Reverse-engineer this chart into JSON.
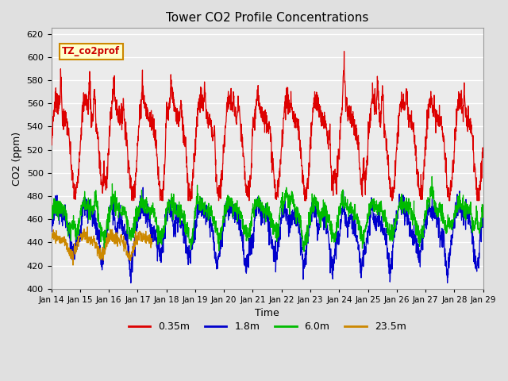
{
  "title": "Tower CO2 Profile Concentrations",
  "xlabel": "Time",
  "ylabel": "CO2 (ppm)",
  "ylim": [
    400,
    625
  ],
  "yticks": [
    400,
    420,
    440,
    460,
    480,
    500,
    520,
    540,
    560,
    580,
    600,
    620
  ],
  "xticklabels": [
    "Jan 14",
    "Jan 15",
    "Jan 16",
    "Jan 17",
    "Jan 18",
    "Jan 19",
    "Jan 20",
    "Jan 21",
    "Jan 22",
    "Jan 23",
    "Jan 24",
    "Jan 25",
    "Jan 26",
    "Jan 27",
    "Jan 28",
    "Jan 29"
  ],
  "colors": {
    "0.35m": "#dd0000",
    "1.8m": "#0000cc",
    "6.0m": "#00bb00",
    "23.5m": "#cc8800"
  },
  "legend_label": "TZ_co2prof",
  "legend_box_facecolor": "#ffffcc",
  "legend_box_edgecolor": "#cc8800",
  "background_color": "#e0e0e0",
  "plot_bg_color": "#ebebeb",
  "grid_color": "#ffffff",
  "n_days": 15,
  "pts_per_day": 144,
  "seed": 7
}
